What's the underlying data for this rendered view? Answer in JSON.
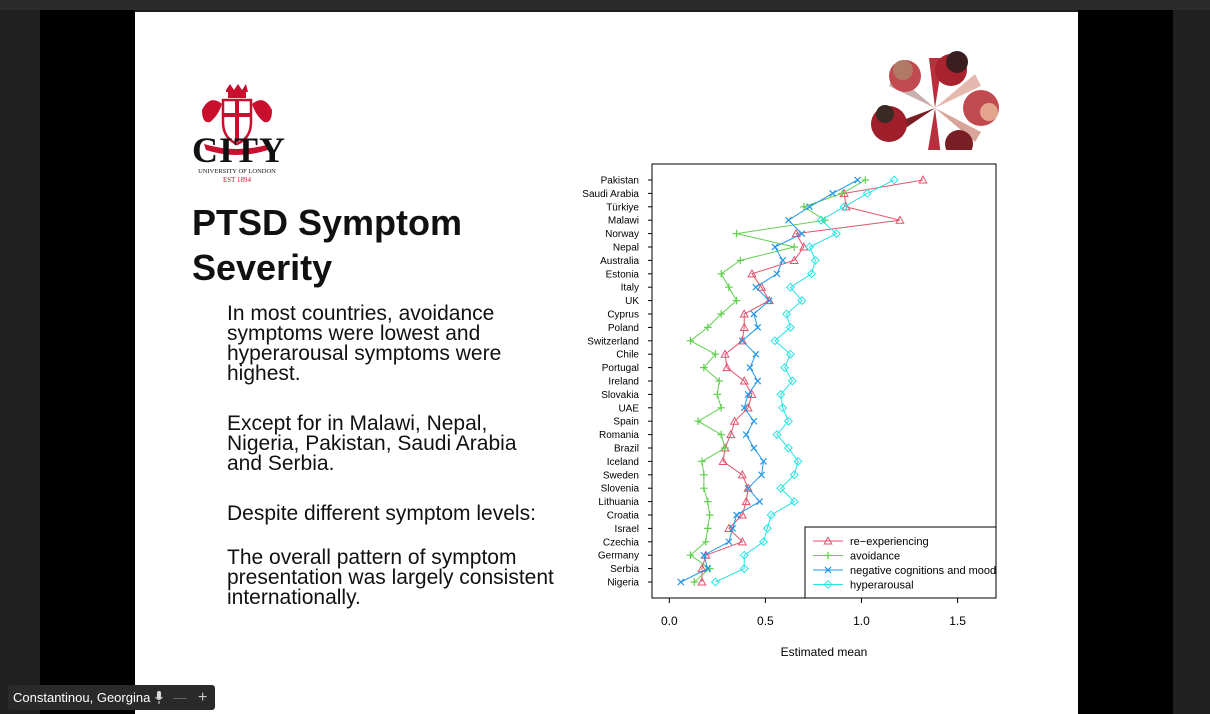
{
  "slide": {
    "logo_text": "CITY",
    "logo_subtext": "UNIVERSITY OF LONDON",
    "logo_est": "EST 1894",
    "title_line1": "PTSD Symptom",
    "title_line2": "Severity",
    "para1": "In most countries, avoidance symptoms were lowest and hyperarousal symptoms were highest.",
    "para2": "Except for in Malawi, Nepal, Nigeria, Pakistan, Saudi Arabia and Serbia.",
    "para3a": "Despite different symptom levels:",
    "para3b": "The overall pattern of symptom presentation was largely consistent internationally."
  },
  "caption": {
    "name": "Constantinou, Georgina",
    "mic_icon": "microphone-icon",
    "minus_icon": "minimize-icon",
    "plus_icon": "plus-icon"
  },
  "chart_data": {
    "type": "scatter",
    "xlabel": "Estimated mean",
    "xlim": [
      -0.09,
      1.7
    ],
    "xticks": [
      0.0,
      0.5,
      1.0,
      1.5
    ],
    "xtick_labels": [
      "0.0",
      "0.5",
      "1.0",
      "1.5"
    ],
    "legend_position": "bottom-right",
    "categories": [
      "Pakistan",
      "Saudi Arabia",
      "Türkiye",
      "Malawi",
      "Norway",
      "Nepal",
      "Australia",
      "Estonia",
      "Italy",
      "UK",
      "Cyprus",
      "Poland",
      "Switzerland",
      "Chile",
      "Portugal",
      "Ireland",
      "Slovakia",
      "UAE",
      "Spain",
      "Romania",
      "Brazil",
      "Iceland",
      "Sweden",
      "Slovenia",
      "Lithuania",
      "Croatia",
      "Israel",
      "Czechia",
      "Germany",
      "Serbia",
      "Nigeria"
    ],
    "series": [
      {
        "name": "re−experiencing",
        "color": "#df536b",
        "marker": "triangle",
        "values": [
          1.32,
          0.91,
          0.92,
          1.2,
          0.66,
          0.7,
          0.65,
          0.43,
          0.48,
          0.52,
          0.39,
          0.39,
          0.38,
          0.29,
          0.3,
          0.39,
          0.43,
          0.41,
          0.34,
          0.32,
          0.29,
          0.28,
          0.38,
          0.41,
          0.4,
          0.38,
          0.31,
          0.38,
          0.19,
          0.17,
          0.17
        ]
      },
      {
        "name": "avoidance",
        "color": "#61d04f",
        "marker": "plus",
        "values": [
          1.02,
          0.9,
          0.7,
          0.81,
          0.35,
          0.65,
          0.37,
          0.27,
          0.31,
          0.35,
          0.27,
          0.2,
          0.11,
          0.24,
          0.18,
          0.26,
          0.25,
          0.27,
          0.15,
          0.27,
          0.29,
          0.17,
          0.18,
          0.18,
          0.2,
          0.21,
          0.2,
          0.19,
          0.11,
          0.21,
          0.13
        ]
      },
      {
        "name": "negative cognitions and mood",
        "color": "#2297e6",
        "marker": "x",
        "values": [
          0.98,
          0.85,
          0.73,
          0.62,
          0.69,
          0.55,
          0.59,
          0.56,
          0.45,
          0.52,
          0.44,
          0.46,
          0.38,
          0.45,
          0.42,
          0.46,
          0.41,
          0.39,
          0.44,
          0.4,
          0.44,
          0.49,
          0.48,
          0.41,
          0.47,
          0.35,
          0.33,
          0.31,
          0.18,
          0.2,
          0.06
        ]
      },
      {
        "name": "hyperarousal",
        "color": "#28e2e5",
        "marker": "diamond",
        "values": [
          1.17,
          1.03,
          0.91,
          0.79,
          0.87,
          0.73,
          0.76,
          0.74,
          0.63,
          0.69,
          0.61,
          0.63,
          0.55,
          0.63,
          0.6,
          0.64,
          0.58,
          0.59,
          0.62,
          0.56,
          0.62,
          0.67,
          0.65,
          0.58,
          0.65,
          0.53,
          0.51,
          0.49,
          0.39,
          0.39,
          0.24
        ]
      }
    ]
  }
}
